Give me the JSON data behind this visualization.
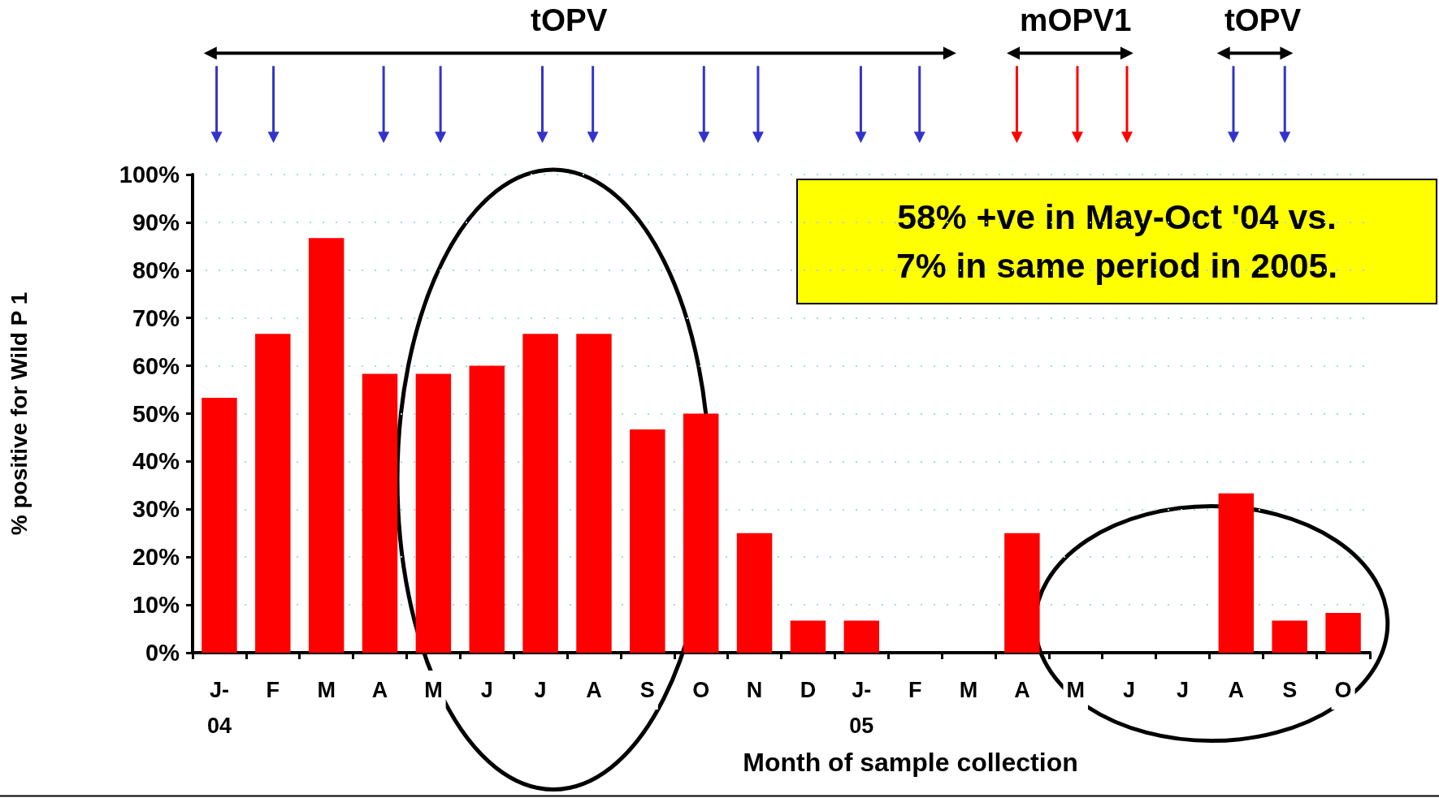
{
  "chart_data": {
    "type": "bar",
    "categories": [
      "J-\n04",
      "F",
      "M",
      "A",
      "M",
      "J",
      "J",
      "A",
      "S",
      "O",
      "N",
      "D",
      "J-\n05",
      "F",
      "M",
      "A",
      "M",
      "J",
      "J",
      "A",
      "S",
      "O"
    ],
    "values": [
      53.3,
      66.7,
      86.7,
      58.3,
      58.3,
      60,
      66.7,
      66.7,
      46.7,
      50,
      25,
      6.7,
      6.7,
      0,
      0,
      25,
      0,
      0,
      0,
      33.3,
      6.7,
      8.3
    ],
    "color": "#ff0000",
    "xlabel": "Month of sample collection",
    "ylabel": "% positive for Wild P 1",
    "ylim": [
      0,
      100
    ],
    "yticks": [
      {
        "value": 0,
        "label": "0%"
      },
      {
        "value": 10,
        "label": "10%"
      },
      {
        "value": 20,
        "label": "20%"
      },
      {
        "value": 30,
        "label": "30%"
      },
      {
        "value": 40,
        "label": "40%"
      },
      {
        "value": 50,
        "label": "50%"
      },
      {
        "value": 60,
        "label": "60%"
      },
      {
        "value": 70,
        "label": "70%"
      },
      {
        "value": 80,
        "label": "80%"
      },
      {
        "value": 90,
        "label": "90%"
      },
      {
        "value": 100,
        "label": "100%"
      }
    ],
    "grid": "y",
    "annotations": [
      "tOPV",
      "mOPV1",
      "tOPV",
      "58% +ve in May-Oct '04 vs.\n7% in same period in 2005."
    ]
  }
}
